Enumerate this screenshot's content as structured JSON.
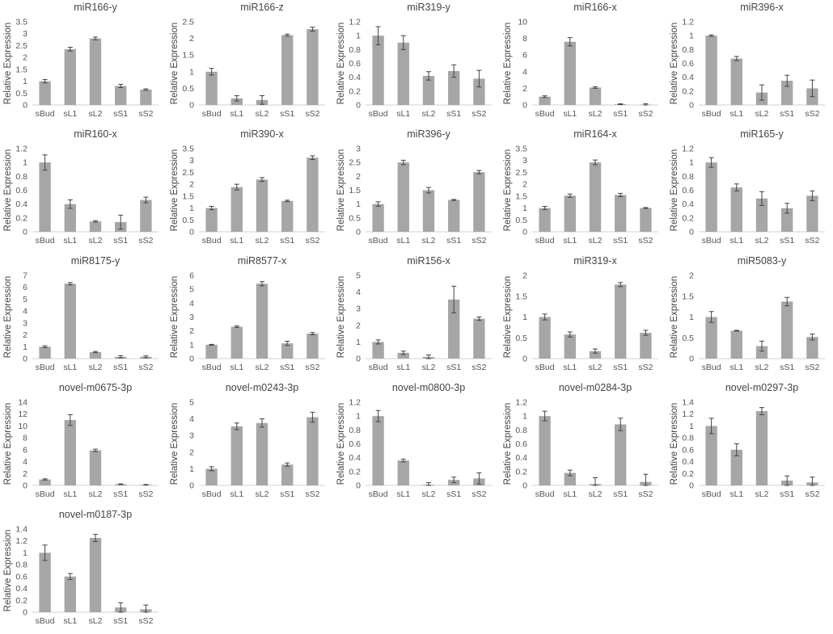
{
  "y_axis_label": "Relative Expression",
  "chart_data": [
    {
      "type": "bar",
      "title": "miR166-y",
      "categories": [
        "sBud",
        "sL1",
        "sL2",
        "sS1",
        "sS2"
      ],
      "ylabel": "Relative Expression",
      "ylim": [
        0,
        3.5
      ],
      "yticks": [
        "0",
        "0.5",
        "1",
        "1.5",
        "2",
        "2.5",
        "3",
        "3.5"
      ],
      "values": [
        1.0,
        2.35,
        2.8,
        0.8,
        0.65
      ],
      "errors": [
        0.07,
        0.08,
        0.06,
        0.07,
        0.03
      ]
    },
    {
      "type": "bar",
      "title": "miR166-z",
      "categories": [
        "sBud",
        "sL1",
        "sL2",
        "sS1",
        "sS2"
      ],
      "ylabel": "Relative Expression",
      "ylim": [
        0,
        2.5
      ],
      "yticks": [
        "0",
        "0.5",
        "1",
        "1.5",
        "2",
        "2.5"
      ],
      "values": [
        1.0,
        0.2,
        0.15,
        2.1,
        2.28
      ],
      "errors": [
        0.1,
        0.08,
        0.13,
        0.03,
        0.06
      ]
    },
    {
      "type": "bar",
      "title": "miR319-y",
      "categories": [
        "sBud",
        "sL1",
        "sL2",
        "sS1",
        "sS2"
      ],
      "ylabel": "Relative Expression",
      "ylim": [
        0,
        1.2
      ],
      "yticks": [
        "0",
        "0.2",
        "0.4",
        "0.6",
        "0.8",
        "1",
        "1.2"
      ],
      "values": [
        1.0,
        0.9,
        0.42,
        0.49,
        0.38
      ],
      "errors": [
        0.13,
        0.1,
        0.06,
        0.09,
        0.12
      ]
    },
    {
      "type": "bar",
      "title": "miR166-x",
      "categories": [
        "sBud",
        "sL1",
        "sL2",
        "sS1",
        "sS2"
      ],
      "ylabel": "Relative Expression",
      "ylim": [
        0,
        10
      ],
      "yticks": [
        "0",
        "2",
        "4",
        "6",
        "8",
        "10"
      ],
      "values": [
        1.0,
        7.6,
        2.1,
        0.1,
        0.05
      ],
      "errors": [
        0.1,
        0.5,
        0.1,
        0.05,
        0.1
      ]
    },
    {
      "type": "bar",
      "title": "miR396-x",
      "categories": [
        "sBud",
        "sL1",
        "sL2",
        "sS1",
        "sS2"
      ],
      "ylabel": "Relative Expression",
      "ylim": [
        0,
        1.2
      ],
      "yticks": [
        "0",
        "0.2",
        "0.4",
        "0.6",
        "0.8",
        "1",
        "1.2"
      ],
      "values": [
        1.0,
        0.67,
        0.18,
        0.35,
        0.24
      ],
      "errors": [
        0.01,
        0.03,
        0.11,
        0.08,
        0.12
      ]
    },
    {
      "type": "bar",
      "title": "miR160-x",
      "categories": [
        "sBud",
        "sL1",
        "sL2",
        "sS1",
        "sS2"
      ],
      "ylabel": "Relative Expression",
      "ylim": [
        0,
        1.2
      ],
      "yticks": [
        "0",
        "0.2",
        "0.4",
        "0.6",
        "0.8",
        "1",
        "1.2"
      ],
      "values": [
        1.0,
        0.4,
        0.15,
        0.14,
        0.46
      ],
      "errors": [
        0.11,
        0.06,
        0.01,
        0.1,
        0.04
      ]
    },
    {
      "type": "bar",
      "title": "miR390-x",
      "categories": [
        "sBud",
        "sL1",
        "sL2",
        "sS1",
        "sS2"
      ],
      "ylabel": "Relative Expression",
      "ylim": [
        0,
        3.5
      ],
      "yticks": [
        "0",
        "0.5",
        "1",
        "1.5",
        "2",
        "2.5",
        "3",
        "3.5"
      ],
      "values": [
        1.0,
        1.88,
        2.2,
        1.3,
        3.12
      ],
      "errors": [
        0.07,
        0.12,
        0.08,
        0.03,
        0.08
      ]
    },
    {
      "type": "bar",
      "title": "miR396-y",
      "categories": [
        "sBud",
        "sL1",
        "sL2",
        "sS1",
        "sS2"
      ],
      "ylabel": "Relative Expression",
      "ylim": [
        0,
        3
      ],
      "yticks": [
        "0",
        "0.5",
        "1",
        "1.5",
        "2",
        "2.5",
        "3"
      ],
      "values": [
        1.0,
        2.5,
        1.5,
        1.15,
        2.15
      ],
      "errors": [
        0.08,
        0.08,
        0.1,
        0.02,
        0.06
      ]
    },
    {
      "type": "bar",
      "title": "miR164-x",
      "categories": [
        "sBud",
        "sL1",
        "sL2",
        "sS1",
        "sS2"
      ],
      "ylabel": "Relative Expression",
      "ylim": [
        0,
        3.5
      ],
      "yticks": [
        "0",
        "0.5",
        "1",
        "1.5",
        "2",
        "2.5",
        "3",
        "3.5"
      ],
      "values": [
        1.0,
        1.52,
        2.92,
        1.55,
        1.0
      ],
      "errors": [
        0.07,
        0.07,
        0.1,
        0.07,
        0.02
      ]
    },
    {
      "type": "bar",
      "title": "miR165-y",
      "categories": [
        "sBud",
        "sL1",
        "sL2",
        "sS1",
        "sS2"
      ],
      "ylabel": "Relative Expression",
      "ylim": [
        0,
        1.2
      ],
      "yticks": [
        "0",
        "0.2",
        "0.4",
        "0.6",
        "0.8",
        "1",
        "1.2"
      ],
      "values": [
        1.0,
        0.64,
        0.48,
        0.34,
        0.52
      ],
      "errors": [
        0.07,
        0.05,
        0.1,
        0.07,
        0.07
      ]
    },
    {
      "type": "bar",
      "title": "miR8175-y",
      "categories": [
        "sBud",
        "sL1",
        "sL2",
        "sS1",
        "sS2"
      ],
      "ylabel": "Relative Expression",
      "ylim": [
        0,
        7
      ],
      "yticks": [
        "0",
        "1",
        "2",
        "3",
        "4",
        "5",
        "6",
        "7"
      ],
      "values": [
        1.0,
        6.3,
        0.55,
        0.15,
        0.15
      ],
      "errors": [
        0.08,
        0.1,
        0.05,
        0.1,
        0.08
      ]
    },
    {
      "type": "bar",
      "title": "miR8577-x",
      "categories": [
        "sBud",
        "sL1",
        "sL2",
        "sS1",
        "sS2"
      ],
      "ylabel": "Relative Expression",
      "ylim": [
        0,
        6
      ],
      "yticks": [
        "0",
        "1",
        "2",
        "3",
        "4",
        "5",
        "6"
      ],
      "values": [
        1.0,
        2.3,
        5.4,
        1.1,
        1.8
      ],
      "errors": [
        0.03,
        0.05,
        0.15,
        0.15,
        0.08
      ]
    },
    {
      "type": "bar",
      "title": "miR156-x",
      "categories": [
        "sBud",
        "sL1",
        "sL2",
        "sS1",
        "sS2"
      ],
      "ylabel": "Relative Expression",
      "ylim": [
        0,
        5
      ],
      "yticks": [
        "0",
        "1",
        "2",
        "3",
        "4",
        "5"
      ],
      "values": [
        1.0,
        0.35,
        0.1,
        3.55,
        2.4
      ],
      "errors": [
        0.12,
        0.1,
        0.12,
        0.8,
        0.1
      ]
    },
    {
      "type": "bar",
      "title": "miR319-x",
      "categories": [
        "sBud",
        "sL1",
        "sL2",
        "sS1",
        "sS2"
      ],
      "ylabel": "Relative Expression",
      "ylim": [
        0,
        2
      ],
      "yticks": [
        "0",
        "0.5",
        "1",
        "1.5",
        "2"
      ],
      "values": [
        1.0,
        0.58,
        0.18,
        1.78,
        0.62
      ],
      "errors": [
        0.07,
        0.06,
        0.05,
        0.05,
        0.06
      ]
    },
    {
      "type": "bar",
      "title": "miR5083-y",
      "categories": [
        "sBud",
        "sL1",
        "sL2",
        "sS1",
        "sS2"
      ],
      "ylabel": "Relative Expression",
      "ylim": [
        0,
        2
      ],
      "yticks": [
        "0",
        "0.5",
        "1",
        "1.5",
        "2"
      ],
      "values": [
        1.0,
        0.67,
        0.3,
        1.37,
        0.52
      ],
      "errors": [
        0.13,
        0.01,
        0.12,
        0.1,
        0.07
      ]
    },
    {
      "type": "bar",
      "title": "novel-m0675-3p",
      "categories": [
        "sBud",
        "sL1",
        "sL2",
        "sS1",
        "sS2"
      ],
      "ylabel": "Relative Expression",
      "ylim": [
        0,
        14
      ],
      "yticks": [
        "0",
        "2",
        "4",
        "6",
        "8",
        "10",
        "12",
        "14"
      ],
      "values": [
        1.0,
        11.0,
        5.9,
        0.2,
        0.1
      ],
      "errors": [
        0.1,
        0.9,
        0.2,
        0.05,
        0.05
      ]
    },
    {
      "type": "bar",
      "title": "novel-m0243-3p",
      "categories": [
        "sBud",
        "sL1",
        "sL2",
        "sS1",
        "sS2"
      ],
      "ylabel": "Relative Expression",
      "ylim": [
        0,
        5
      ],
      "yticks": [
        "0",
        "1",
        "2",
        "3",
        "4",
        "5"
      ],
      "values": [
        1.0,
        3.55,
        3.75,
        1.25,
        4.1
      ],
      "errors": [
        0.12,
        0.2,
        0.25,
        0.1,
        0.3
      ]
    },
    {
      "type": "bar",
      "title": "novel-m0800-3p",
      "categories": [
        "sBud",
        "sL1",
        "sL2",
        "sS1",
        "sS2"
      ],
      "ylabel": "Relative Expression",
      "ylim": [
        0,
        1.2
      ],
      "yticks": [
        "0",
        "0.2",
        "0.4",
        "0.6",
        "0.8",
        "1",
        "1.2"
      ],
      "values": [
        1.0,
        0.36,
        0.01,
        0.08,
        0.1
      ],
      "errors": [
        0.08,
        0.02,
        0.03,
        0.04,
        0.08
      ]
    },
    {
      "type": "bar",
      "title": "novel-m0284-3p",
      "categories": [
        "sBud",
        "sL1",
        "sL2",
        "sS1",
        "sS2"
      ],
      "ylabel": "Relative Expression",
      "ylim": [
        0,
        1.2
      ],
      "yticks": [
        "0",
        "0.2",
        "0.4",
        "0.6",
        "0.8",
        "1",
        "1.2"
      ],
      "values": [
        1.0,
        0.18,
        0.02,
        0.88,
        0.05
      ],
      "errors": [
        0.07,
        0.04,
        0.09,
        0.09,
        0.11
      ]
    },
    {
      "type": "bar",
      "title": "novel-m0297-3p",
      "categories": [
        "sBud",
        "sL1",
        "sL2",
        "sS1",
        "sS2"
      ],
      "ylabel": "Relative Expression",
      "ylim": [
        0,
        1.4
      ],
      "yticks": [
        "0",
        "0.2",
        "0.4",
        "0.6",
        "0.8",
        "1",
        "1.2",
        "1.4"
      ],
      "values": [
        1.0,
        0.6,
        1.25,
        0.08,
        0.05
      ],
      "errors": [
        0.13,
        0.1,
        0.06,
        0.08,
        0.09
      ]
    },
    {
      "type": "bar",
      "title": "novel-m0187-3p",
      "categories": [
        "sBud",
        "sL1",
        "sL2",
        "sS1",
        "sS2"
      ],
      "ylabel": "Relative Expression",
      "ylim": [
        0,
        1.4
      ],
      "yticks": [
        "0",
        "0.2",
        "0.4",
        "0.6",
        "0.8",
        "1",
        "1.2",
        "1.4"
      ],
      "values": [
        1.0,
        0.6,
        1.25,
        0.08,
        0.05
      ],
      "errors": [
        0.13,
        0.05,
        0.06,
        0.08,
        0.07
      ]
    }
  ]
}
